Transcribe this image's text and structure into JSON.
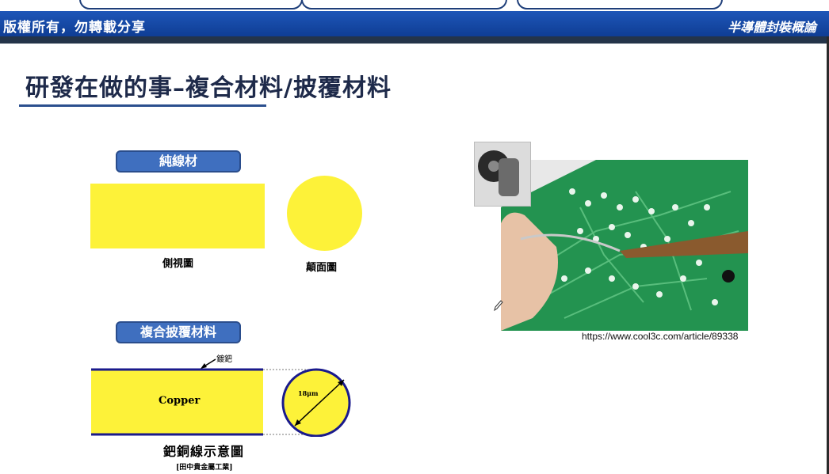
{
  "header": {
    "left_text": "版權所有，勿轉載分享",
    "right_text": "半導體封裝概論"
  },
  "slide": {
    "title": "研發在做的事–複合材料/披覆材料"
  },
  "pure_wire": {
    "label": "純線材",
    "side_view_caption": "側視圖",
    "cross_section_caption": "顛面圖"
  },
  "composite": {
    "label": "複合披覆材料",
    "plating_label": "鍍鈀",
    "core_label": "Copper",
    "diameter_label": "18μm",
    "diagram_title": "鈀銅線示意圖",
    "source": "[田中貴金屬工業]"
  },
  "photo": {
    "url": "https://www.cool3c.com/article/89338"
  },
  "colors": {
    "banner": "#1e56b8",
    "yellow": "#fdf239",
    "navy_outline": "#1a1a8c",
    "pill": "#3f6fbf"
  }
}
